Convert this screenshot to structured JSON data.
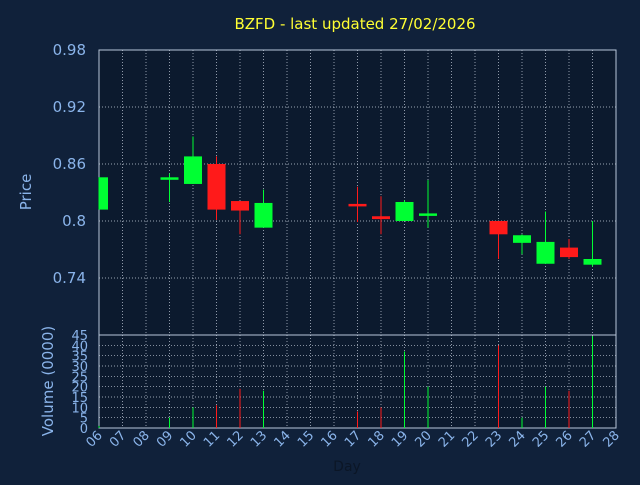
{
  "colors": {
    "background": "#10213a",
    "plot_background": "#0c1a2e",
    "frame": "#b9c7da",
    "grid": "#c8d2e0",
    "up": "#00ff33",
    "down": "#ff1a1a",
    "title": "#ffff33",
    "axis_text": "#8ab4ea"
  },
  "chart_data": [
    {
      "type": "candlestick",
      "title": "BZFD - last updated 27/02/2026",
      "ylabel": "Price",
      "ylim": [
        0.68,
        0.98
      ],
      "yticks": [
        "0.98",
        "0.92",
        "0.86",
        "0.8",
        "0.74"
      ],
      "grid": true,
      "x": [
        "06",
        "09",
        "10",
        "11",
        "12",
        "13",
        "17",
        "18",
        "19",
        "20",
        "23",
        "24",
        "25",
        "26",
        "27"
      ],
      "open": [
        0.812,
        0.846,
        0.839,
        0.86,
        0.821,
        0.793,
        0.818,
        0.805,
        0.8,
        0.808,
        0.8,
        0.777,
        0.755,
        0.772,
        0.754
      ],
      "high": [
        0.846,
        0.85,
        0.889,
        0.868,
        0.821,
        0.833,
        0.836,
        0.826,
        0.822,
        0.843,
        0.8,
        0.786,
        0.81,
        0.781,
        0.8
      ],
      "low": [
        0.812,
        0.82,
        0.839,
        0.801,
        0.786,
        0.793,
        0.799,
        0.786,
        0.8,
        0.793,
        0.76,
        0.765,
        0.755,
        0.76,
        0.752
      ],
      "close": [
        0.846,
        0.846,
        0.868,
        0.812,
        0.811,
        0.819,
        0.816,
        0.802,
        0.82,
        0.808,
        0.786,
        0.785,
        0.778,
        0.762,
        0.76
      ]
    },
    {
      "type": "bar",
      "ylabel": "Volume (0000)",
      "xlabel": "Day",
      "ylim": [
        0,
        45
      ],
      "yticks": [
        "45",
        "40",
        "35",
        "30",
        "25",
        "20",
        "15",
        "10",
        "5",
        "0"
      ],
      "xticks": [
        "06",
        "07",
        "08",
        "09",
        "10",
        "11",
        "12",
        "13",
        "14",
        "15",
        "16",
        "17",
        "18",
        "19",
        "20",
        "21",
        "22",
        "23",
        "24",
        "25",
        "26",
        "27",
        "28"
      ],
      "x": [
        "06",
        "09",
        "10",
        "11",
        "12",
        "13",
        "17",
        "18",
        "19",
        "20",
        "23",
        "24",
        "25",
        "26",
        "27"
      ],
      "values": [
        1,
        5,
        10,
        11,
        19,
        18,
        8,
        10,
        37,
        20,
        40,
        5,
        20,
        18,
        46
      ]
    }
  ]
}
